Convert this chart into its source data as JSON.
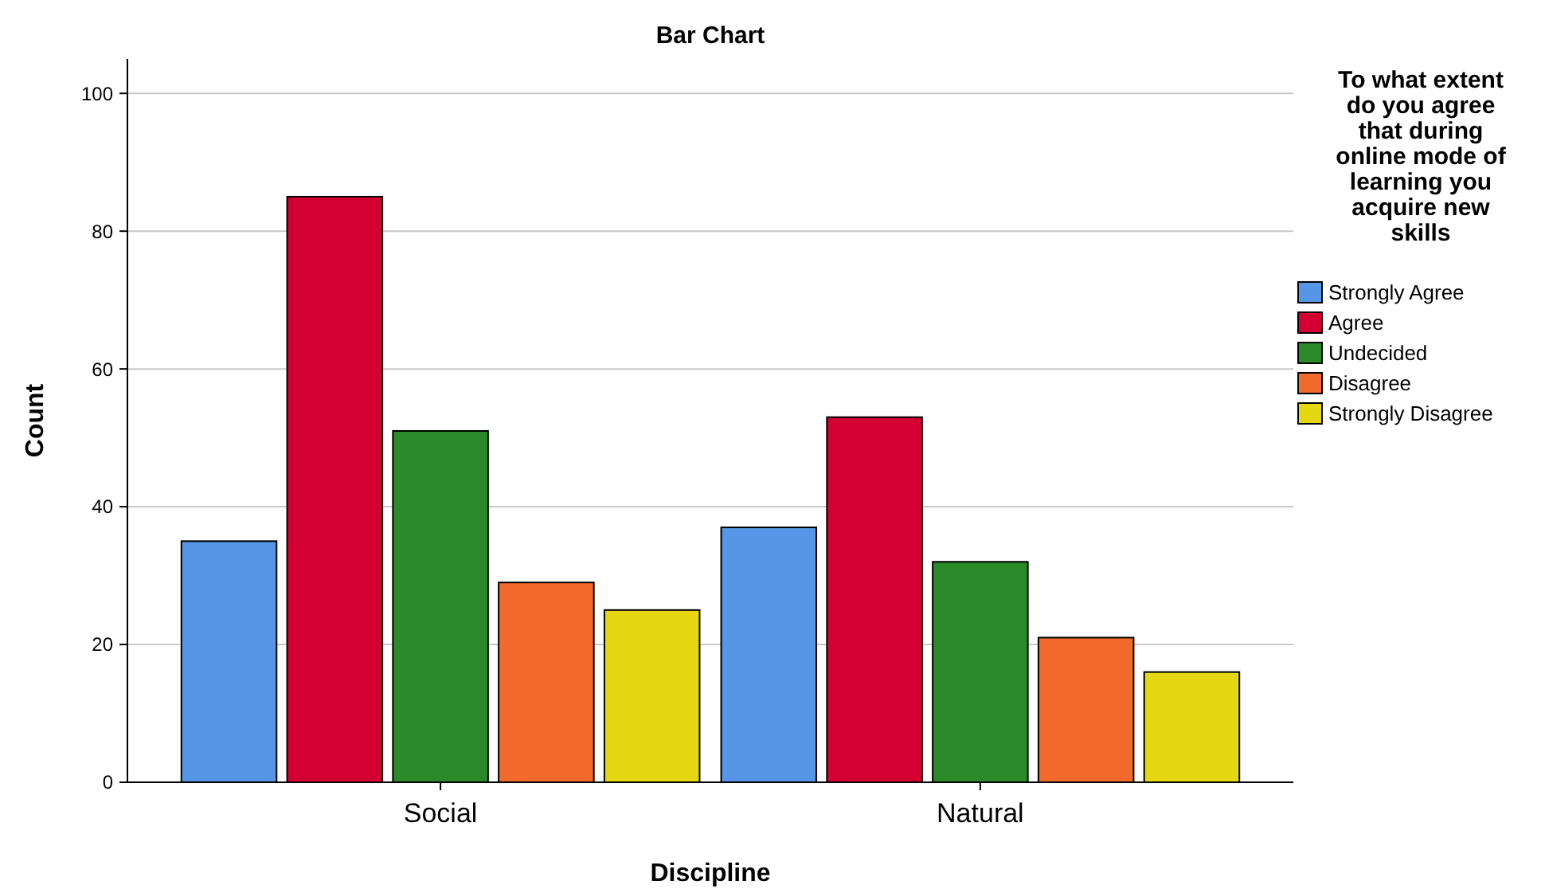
{
  "chart_data": {
    "type": "bar",
    "title": "Bar Chart",
    "xlabel": "Discipline",
    "ylabel": "Count",
    "legend_title": "To what extent do you agree that during online mode of learning you acquire new skills",
    "categories": [
      "Social",
      "Natural"
    ],
    "series": [
      {
        "name": "Strongly Agree",
        "color": "#5597e6",
        "values": [
          35,
          37
        ]
      },
      {
        "name": "Agree",
        "color": "#d50032",
        "values": [
          85,
          53
        ]
      },
      {
        "name": "Undecided",
        "color": "#2a8a2a",
        "values": [
          51,
          32
        ]
      },
      {
        "name": "Disagree",
        "color": "#f26b2c",
        "values": [
          29,
          21
        ]
      },
      {
        "name": "Strongly Disagree",
        "color": "#e5d810",
        "values": [
          25,
          16
        ]
      }
    ],
    "ylim": [
      0,
      105
    ],
    "yticks": [
      0,
      20,
      40,
      60,
      80,
      100
    ],
    "grid": "y",
    "legend": "right"
  }
}
